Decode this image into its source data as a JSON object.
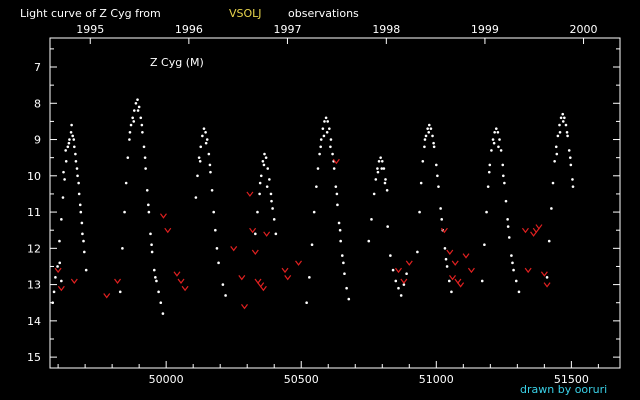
{
  "header": {
    "title_prefix": "Light curve of Z Cyg from",
    "source": "VSOLJ",
    "title_suffix": "observations"
  },
  "footer": {
    "credit": "drawn by ooruri"
  },
  "colors": {
    "background": "#000000",
    "visual_obs": "#ffffff",
    "fainter_than": "#e02020",
    "source_label": "#e8d44d",
    "credit": "#39d0e6"
  },
  "chart_data": {
    "type": "scatter",
    "title": "Light curve of Z Cyg from VSOLJ observations",
    "annotation": "Z Cyg (M)",
    "xlabel": "",
    "ylabel": "",
    "xlim": [
      49570,
      51680
    ],
    "ylim": [
      15.3,
      6.2
    ],
    "y_inverted": true,
    "grid": false,
    "x_ticks": [
      50000,
      50500,
      51000,
      51500
    ],
    "x_tick_labels": [
      "50000",
      "50500",
      "51000",
      "51500"
    ],
    "year_ticks": [
      1995,
      1996,
      1997,
      1998,
      1999,
      2000
    ],
    "year_tick_jd": [
      49719,
      50084,
      50449,
      50815,
      51180,
      51545
    ],
    "y_ticks": [
      7,
      8,
      9,
      10,
      11,
      12,
      13,
      14,
      15
    ],
    "series": [
      {
        "marker": "dot",
        "color": "#ffffff",
        "points": [
          [
            49580,
            13.5
          ],
          [
            49585,
            13.2
          ],
          [
            49590,
            12.8
          ],
          [
            49598,
            12.5
          ],
          [
            49605,
            11.8
          ],
          [
            49612,
            11.2
          ],
          [
            49618,
            10.6
          ],
          [
            49624,
            10.1
          ],
          [
            49630,
            9.6
          ],
          [
            49636,
            9.2
          ],
          [
            49642,
            9.0
          ],
          [
            49648,
            8.8
          ],
          [
            49654,
            8.9
          ],
          [
            49660,
            9.2
          ],
          [
            49666,
            9.6
          ],
          [
            49672,
            10.0
          ],
          [
            49678,
            10.5
          ],
          [
            49684,
            11.0
          ],
          [
            49690,
            11.6
          ],
          [
            49697,
            12.1
          ],
          [
            49704,
            12.6
          ],
          [
            49620,
            9.9
          ],
          [
            49628,
            9.3
          ],
          [
            49640,
            9.1
          ],
          [
            49650,
            8.6
          ],
          [
            49658,
            9.0
          ],
          [
            49664,
            9.4
          ],
          [
            49670,
            9.8
          ],
          [
            49676,
            10.2
          ],
          [
            49682,
            10.8
          ],
          [
            49688,
            11.3
          ],
          [
            49694,
            11.8
          ],
          [
            49606,
            12.4
          ],
          [
            49612,
            12.9
          ],
          [
            49830,
            13.2
          ],
          [
            49838,
            12.0
          ],
          [
            49846,
            11.0
          ],
          [
            49852,
            10.2
          ],
          [
            49858,
            9.5
          ],
          [
            49864,
            9.0
          ],
          [
            49870,
            8.6
          ],
          [
            49876,
            8.4
          ],
          [
            49882,
            8.2
          ],
          [
            49888,
            8.0
          ],
          [
            49894,
            7.9
          ],
          [
            49900,
            8.1
          ],
          [
            49906,
            8.4
          ],
          [
            49912,
            8.8
          ],
          [
            49918,
            9.2
          ],
          [
            49924,
            9.8
          ],
          [
            49930,
            10.4
          ],
          [
            49936,
            11.0
          ],
          [
            49942,
            11.6
          ],
          [
            49948,
            12.1
          ],
          [
            49956,
            12.6
          ],
          [
            49964,
            12.9
          ],
          [
            49972,
            13.2
          ],
          [
            49980,
            13.5
          ],
          [
            49988,
            13.8
          ],
          [
            49866,
            8.8
          ],
          [
            49880,
            8.5
          ],
          [
            49896,
            8.2
          ],
          [
            49910,
            8.6
          ],
          [
            49922,
            9.5
          ],
          [
            49934,
            10.8
          ],
          [
            49946,
            11.9
          ],
          [
            49960,
            12.8
          ],
          [
            50110,
            10.6
          ],
          [
            50116,
            10.0
          ],
          [
            50122,
            9.5
          ],
          [
            50128,
            9.2
          ],
          [
            50134,
            8.9
          ],
          [
            50140,
            8.7
          ],
          [
            50146,
            8.8
          ],
          [
            50152,
            9.0
          ],
          [
            50158,
            9.4
          ],
          [
            50164,
            9.9
          ],
          [
            50170,
            10.4
          ],
          [
            50176,
            11.0
          ],
          [
            50182,
            11.5
          ],
          [
            50188,
            12.0
          ],
          [
            50194,
            12.4
          ],
          [
            50210,
            13.0
          ],
          [
            50220,
            13.3
          ],
          [
            50126,
            9.6
          ],
          [
            50148,
            9.1
          ],
          [
            50162,
            9.7
          ],
          [
            50330,
            11.6
          ],
          [
            50338,
            11.0
          ],
          [
            50346,
            10.5
          ],
          [
            50352,
            10.0
          ],
          [
            50358,
            9.6
          ],
          [
            50364,
            9.4
          ],
          [
            50370,
            9.5
          ],
          [
            50376,
            9.8
          ],
          [
            50382,
            10.1
          ],
          [
            50388,
            10.5
          ],
          [
            50394,
            10.9
          ],
          [
            50400,
            11.2
          ],
          [
            50406,
            11.6
          ],
          [
            50348,
            10.2
          ],
          [
            50362,
            9.7
          ],
          [
            50374,
            10.3
          ],
          [
            50390,
            10.7
          ],
          [
            50520,
            13.5
          ],
          [
            50530,
            12.8
          ],
          [
            50540,
            11.9
          ],
          [
            50548,
            11.0
          ],
          [
            50556,
            10.3
          ],
          [
            50562,
            9.8
          ],
          [
            50568,
            9.4
          ],
          [
            50574,
            9.0
          ],
          [
            50580,
            8.7
          ],
          [
            50586,
            8.5
          ],
          [
            50592,
            8.4
          ],
          [
            50598,
            8.5
          ],
          [
            50604,
            8.7
          ],
          [
            50610,
            9.0
          ],
          [
            50616,
            9.4
          ],
          [
            50622,
            9.8
          ],
          [
            50628,
            10.3
          ],
          [
            50634,
            10.8
          ],
          [
            50640,
            11.3
          ],
          [
            50646,
            11.8
          ],
          [
            50652,
            12.2
          ],
          [
            50660,
            12.7
          ],
          [
            50668,
            13.1
          ],
          [
            50676,
            13.4
          ],
          [
            50572,
            9.2
          ],
          [
            50584,
            8.9
          ],
          [
            50596,
            8.8
          ],
          [
            50608,
            9.2
          ],
          [
            50620,
            9.6
          ],
          [
            50632,
            10.5
          ],
          [
            50644,
            11.5
          ],
          [
            50656,
            12.4
          ],
          [
            50750,
            11.8
          ],
          [
            50760,
            11.2
          ],
          [
            50770,
            10.5
          ],
          [
            50776,
            10.1
          ],
          [
            50782,
            9.8
          ],
          [
            50788,
            9.6
          ],
          [
            50794,
            9.5
          ],
          [
            50800,
            9.6
          ],
          [
            50806,
            9.8
          ],
          [
            50812,
            10.1
          ],
          [
            50818,
            10.4
          ],
          [
            50784,
            9.9
          ],
          [
            50798,
            9.8
          ],
          [
            50810,
            10.2
          ],
          [
            50820,
            11.4
          ],
          [
            50830,
            12.2
          ],
          [
            50840,
            12.6
          ],
          [
            50850,
            12.9
          ],
          [
            50860,
            13.1
          ],
          [
            50870,
            13.3
          ],
          [
            50880,
            13.0
          ],
          [
            50890,
            12.7
          ],
          [
            50930,
            12.1
          ],
          [
            50938,
            11.0
          ],
          [
            50944,
            10.2
          ],
          [
            50950,
            9.6
          ],
          [
            50956,
            9.2
          ],
          [
            50962,
            8.9
          ],
          [
            50968,
            8.7
          ],
          [
            50974,
            8.6
          ],
          [
            50980,
            8.7
          ],
          [
            50986,
            8.9
          ],
          [
            50992,
            9.2
          ],
          [
            51000,
            9.7
          ],
          [
            51008,
            10.3
          ],
          [
            51016,
            10.9
          ],
          [
            51024,
            11.5
          ],
          [
            51032,
            12.0
          ],
          [
            51040,
            12.5
          ],
          [
            51048,
            12.9
          ],
          [
            51056,
            13.2
          ],
          [
            50958,
            9.0
          ],
          [
            50972,
            8.8
          ],
          [
            50990,
            9.1
          ],
          [
            51004,
            10.0
          ],
          [
            51020,
            11.2
          ],
          [
            51036,
            12.3
          ],
          [
            51170,
            12.9
          ],
          [
            51178,
            11.9
          ],
          [
            51186,
            11.0
          ],
          [
            51192,
            10.3
          ],
          [
            51198,
            9.7
          ],
          [
            51204,
            9.3
          ],
          [
            51210,
            9.0
          ],
          [
            51216,
            8.8
          ],
          [
            51222,
            8.7
          ],
          [
            51228,
            8.8
          ],
          [
            51234,
            9.0
          ],
          [
            51240,
            9.3
          ],
          [
            51246,
            9.7
          ],
          [
            51252,
            10.2
          ],
          [
            51258,
            10.7
          ],
          [
            51264,
            11.2
          ],
          [
            51270,
            11.7
          ],
          [
            51278,
            12.2
          ],
          [
            51286,
            12.6
          ],
          [
            51296,
            12.9
          ],
          [
            51306,
            13.2
          ],
          [
            51196,
            9.9
          ],
          [
            51214,
            9.1
          ],
          [
            51230,
            9.2
          ],
          [
            51248,
            10.0
          ],
          [
            51266,
            11.4
          ],
          [
            51282,
            12.4
          ],
          [
            51410,
            12.8
          ],
          [
            51418,
            11.8
          ],
          [
            51426,
            10.9
          ],
          [
            51432,
            10.2
          ],
          [
            51438,
            9.6
          ],
          [
            51444,
            9.2
          ],
          [
            51450,
            8.9
          ],
          [
            51456,
            8.6
          ],
          [
            51462,
            8.4
          ],
          [
            51468,
            8.3
          ],
          [
            51474,
            8.4
          ],
          [
            51480,
            8.6
          ],
          [
            51486,
            8.9
          ],
          [
            51492,
            9.3
          ],
          [
            51498,
            9.7
          ],
          [
            51504,
            10.1
          ],
          [
            51446,
            9.4
          ],
          [
            51458,
            8.8
          ],
          [
            51470,
            8.5
          ],
          [
            51484,
            8.8
          ],
          [
            51496,
            9.5
          ],
          [
            51506,
            10.3
          ]
        ]
      },
      {
        "marker": "v",
        "color": "#e02020",
        "points": [
          [
            49600,
            12.6
          ],
          [
            49612,
            13.1
          ],
          [
            49660,
            12.9
          ],
          [
            49780,
            13.3
          ],
          [
            49820,
            12.9
          ],
          [
            49990,
            11.1
          ],
          [
            50006,
            11.5
          ],
          [
            50040,
            12.7
          ],
          [
            50055,
            12.9
          ],
          [
            50070,
            13.1
          ],
          [
            50250,
            12.0
          ],
          [
            50280,
            12.8
          ],
          [
            50290,
            13.6
          ],
          [
            50310,
            10.5
          ],
          [
            50320,
            11.5
          ],
          [
            50330,
            12.1
          ],
          [
            50340,
            12.9
          ],
          [
            50350,
            13.0
          ],
          [
            50360,
            13.1
          ],
          [
            50372,
            11.6
          ],
          [
            50440,
            12.6
          ],
          [
            50450,
            12.8
          ],
          [
            50490,
            12.4
          ],
          [
            50630,
            9.6
          ],
          [
            50860,
            12.6
          ],
          [
            50880,
            12.9
          ],
          [
            50900,
            12.4
          ],
          [
            51030,
            11.5
          ],
          [
            51050,
            12.1
          ],
          [
            51060,
            12.8
          ],
          [
            51070,
            12.4
          ],
          [
            51080,
            12.9
          ],
          [
            51090,
            13.0
          ],
          [
            51110,
            12.2
          ],
          [
            51130,
            12.6
          ],
          [
            51330,
            11.5
          ],
          [
            51340,
            12.6
          ],
          [
            51360,
            11.6
          ],
          [
            51370,
            11.5
          ],
          [
            51380,
            11.4
          ],
          [
            51400,
            12.7
          ],
          [
            51410,
            13.0
          ]
        ]
      }
    ]
  }
}
